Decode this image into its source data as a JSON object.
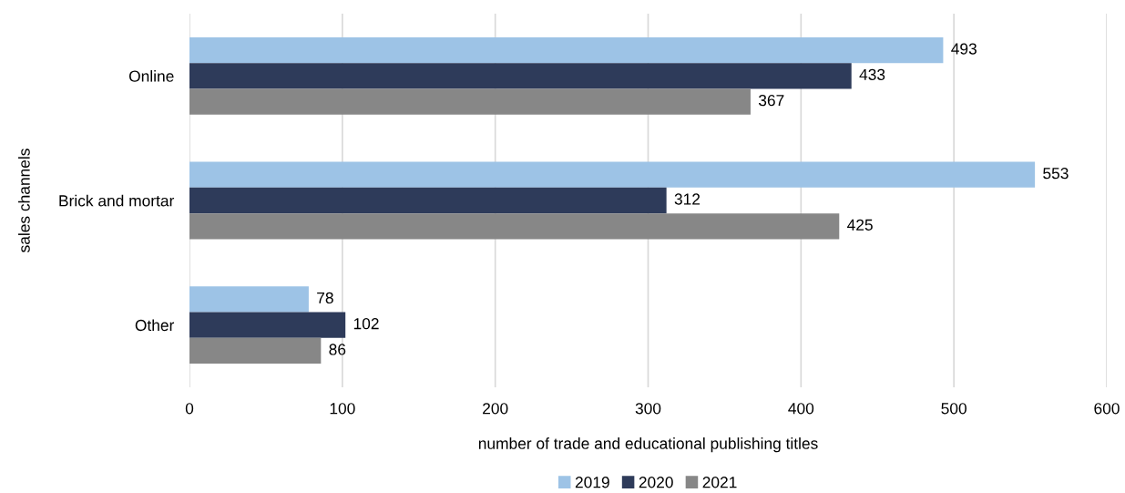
{
  "chart_data": {
    "type": "bar",
    "orientation": "horizontal",
    "xlabel": "number of trade and educational publishing titles",
    "ylabel": "sales channels",
    "categories": [
      "Online",
      "Brick and mortar",
      "Other"
    ],
    "series": [
      {
        "name": "2019",
        "color": "#9dc3e6",
        "values": [
          493,
          553,
          78
        ]
      },
      {
        "name": "2020",
        "color": "#2e3b5a",
        "values": [
          433,
          312,
          102
        ]
      },
      {
        "name": "2021",
        "color": "#878787",
        "values": [
          367,
          425,
          86
        ]
      }
    ],
    "xlim": [
      0,
      600
    ],
    "xticks": [
      0,
      100,
      200,
      300,
      400,
      500,
      600
    ],
    "grid": "x",
    "legend": "bottom",
    "data_labels": true
  }
}
